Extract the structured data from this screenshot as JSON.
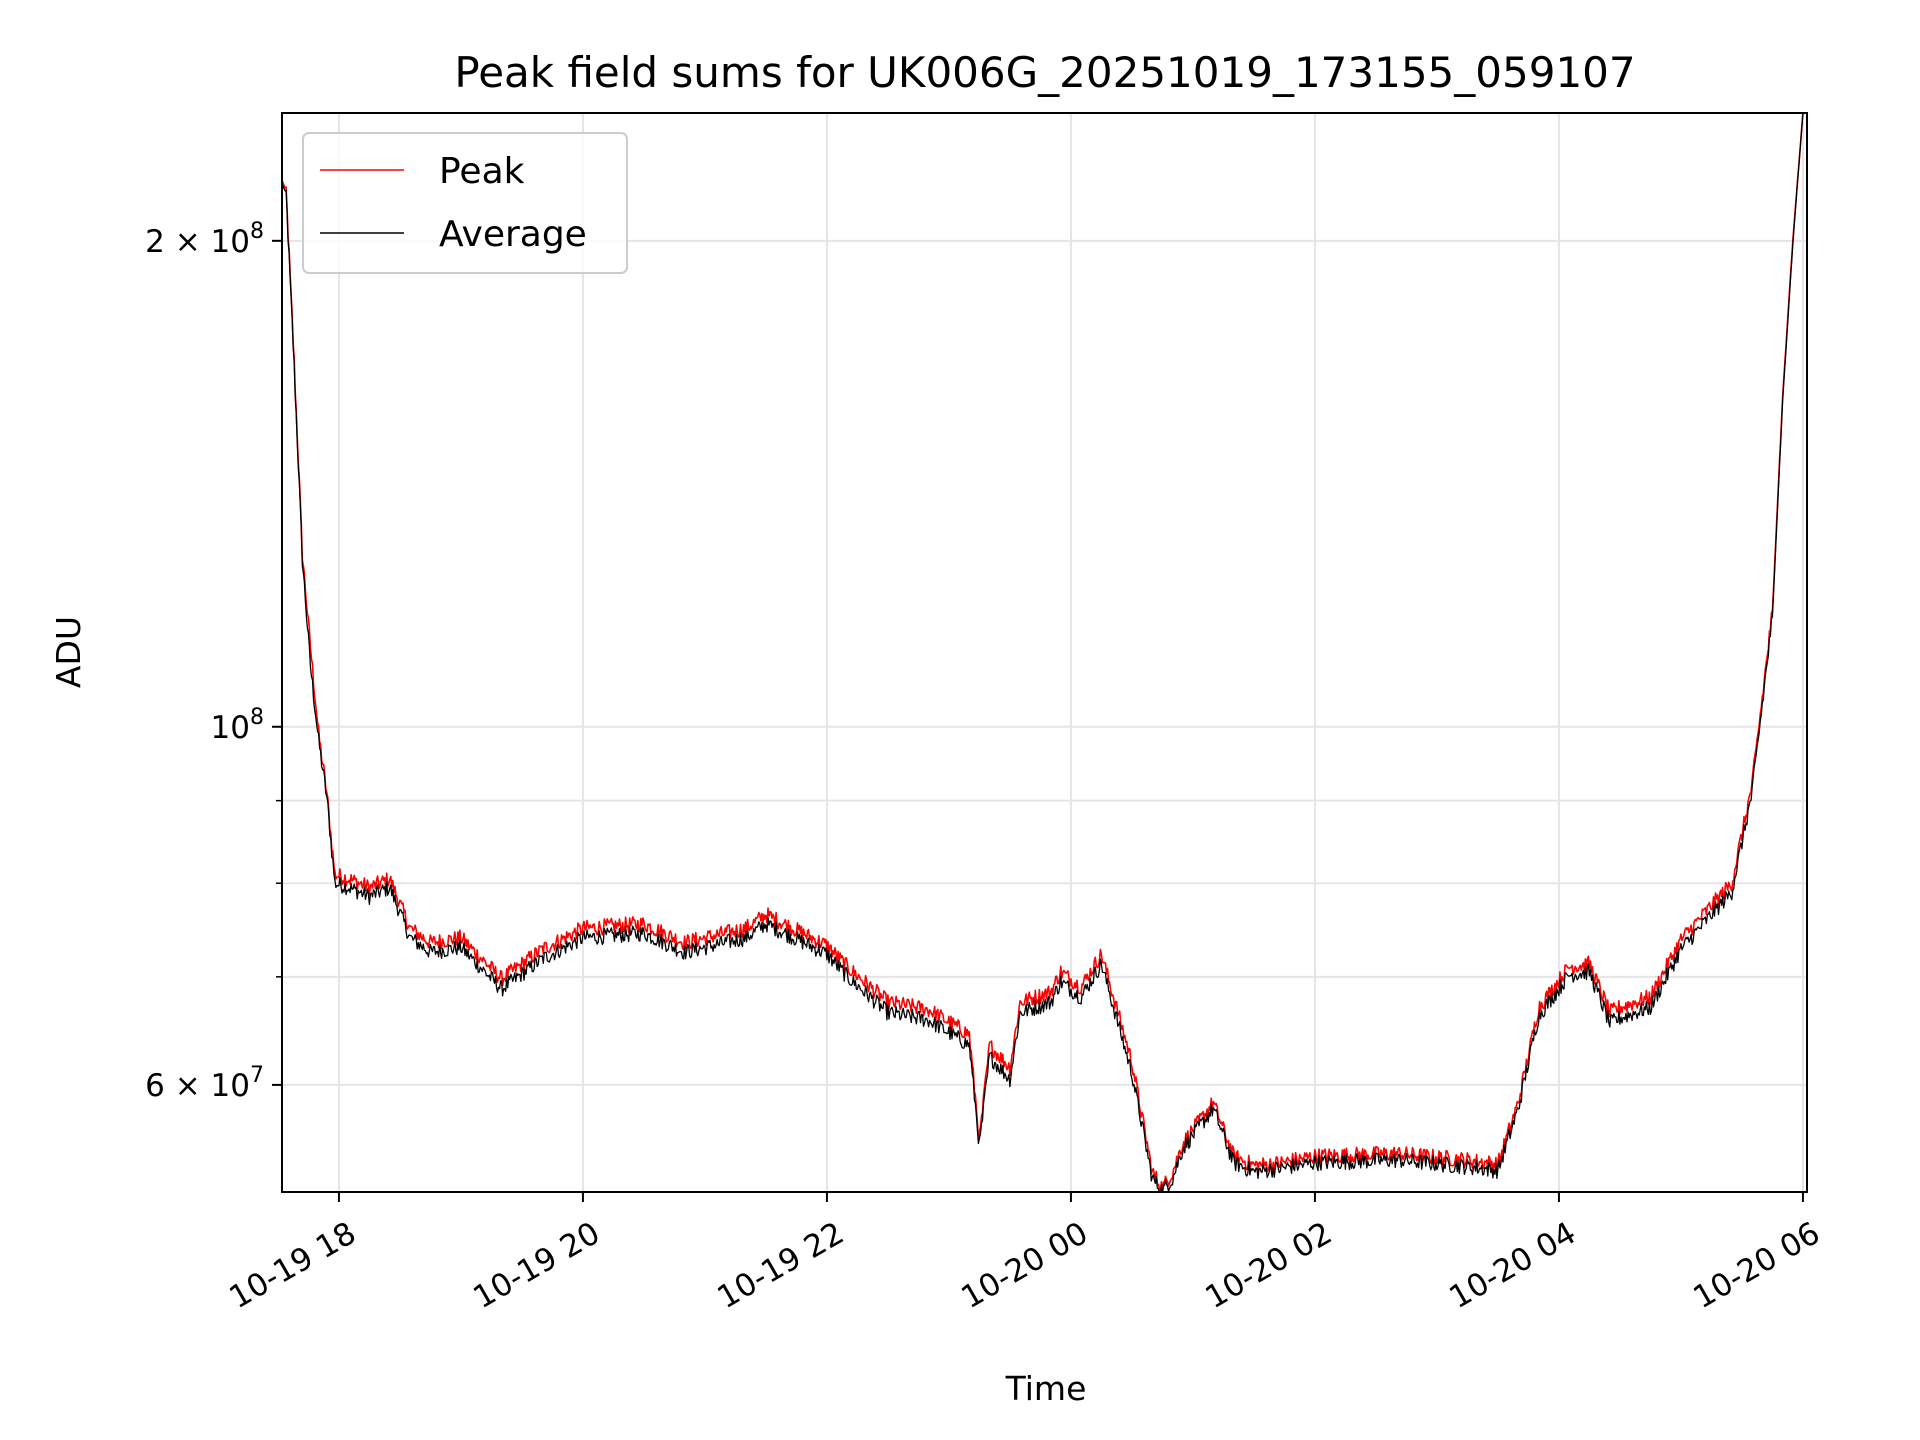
{
  "chart_data": {
    "type": "line",
    "title": "Peak field sums for UK006G_20251019_173155_059107",
    "xlabel": "Time",
    "ylabel": "ADU",
    "x_axis": {
      "type": "time",
      "range": [
        "2025-10-19 17:32",
        "2025-10-20 06:02"
      ],
      "ticks": [
        {
          "value": "2025-10-19 18:00",
          "label": "10-19 18"
        },
        {
          "value": "2025-10-19 20:00",
          "label": "10-19 20"
        },
        {
          "value": "2025-10-19 22:00",
          "label": "10-19 22"
        },
        {
          "value": "2025-10-20 00:00",
          "label": "10-20 00"
        },
        {
          "value": "2025-10-20 02:00",
          "label": "10-20 02"
        },
        {
          "value": "2025-10-20 04:00",
          "label": "10-20 04"
        },
        {
          "value": "2025-10-20 06:00",
          "label": "10-20 06"
        }
      ]
    },
    "y_axis": {
      "scale": "log",
      "range": [
        51500000,
        240000000
      ],
      "ticks": [
        {
          "value": 60000000,
          "label_base": "6 × 10",
          "label_exp": "7"
        },
        {
          "value": 100000000,
          "label_base": "10",
          "label_exp": "8"
        },
        {
          "value": 200000000,
          "label_base": "2 × 10",
          "label_exp": "8"
        }
      ],
      "minor_ticks": [
        70000000,
        80000000,
        90000000
      ]
    },
    "grid": true,
    "legend": {
      "placement": "upper-left",
      "entries": [
        "Peak",
        "Average"
      ]
    },
    "series": [
      {
        "name": "Peak",
        "color": "#ff0000",
        "x": [
          "2025-10-19 17:32",
          "2025-10-19 17:34",
          "2025-10-19 17:38",
          "2025-10-19 17:42",
          "2025-10-19 17:46",
          "2025-10-19 17:50",
          "2025-10-19 17:54",
          "2025-10-19 17:58",
          "2025-10-19 18:05",
          "2025-10-19 18:15",
          "2025-10-19 18:25",
          "2025-10-19 18:35",
          "2025-10-19 18:45",
          "2025-10-19 19:00",
          "2025-10-19 19:20",
          "2025-10-19 19:40",
          "2025-10-19 20:00",
          "2025-10-19 20:30",
          "2025-10-19 20:50",
          "2025-10-19 21:20",
          "2025-10-19 21:30",
          "2025-10-19 22:00",
          "2025-10-19 22:10",
          "2025-10-19 22:30",
          "2025-10-19 22:50",
          "2025-10-19 23:10",
          "2025-10-19 23:15",
          "2025-10-19 23:20",
          "2025-10-19 23:30",
          "2025-10-19 23:35",
          "2025-10-19 23:50",
          "2025-10-19 23:55",
          "2025-10-20 00:05",
          "2025-10-20 00:15",
          "2025-10-20 00:30",
          "2025-10-20 00:40",
          "2025-10-20 00:45",
          "2025-10-20 00:50",
          "2025-10-20 00:55",
          "2025-10-20 01:10",
          "2025-10-20 01:20",
          "2025-10-20 01:30",
          "2025-10-20 01:40",
          "2025-10-20 02:00",
          "2025-10-20 02:40",
          "2025-10-20 03:15",
          "2025-10-20 03:30",
          "2025-10-20 03:40",
          "2025-10-20 03:50",
          "2025-10-20 04:05",
          "2025-10-20 04:15",
          "2025-10-20 04:25",
          "2025-10-20 04:30",
          "2025-10-20 04:45",
          "2025-10-20 05:00",
          "2025-10-20 05:15",
          "2025-10-20 05:25",
          "2025-10-20 05:35",
          "2025-10-20 05:45",
          "2025-10-20 05:50",
          "2025-10-20 05:55",
          "2025-10-20 06:00"
        ],
        "values": [
          218000000,
          215000000,
          168000000,
          128000000,
          112000000,
          99000000,
          91000000,
          81000000,
          80500000,
          79500000,
          80500000,
          75000000,
          73500000,
          74000000,
          69800000,
          72800000,
          75000000,
          75500000,
          73500000,
          75000000,
          76500000,
          73200000,
          71000000,
          67500000,
          66800000,
          64500000,
          55500000,
          63500000,
          61500000,
          67500000,
          68500000,
          70500000,
          69000000,
          72300000,
          62000000,
          53000000,
          51800000,
          53000000,
          55200000,
          58500000,
          54200000,
          53500000,
          53600000,
          54200000,
          54400000,
          53900000,
          53600000,
          58500000,
          67000000,
          71000000,
          71300000,
          66500000,
          67000000,
          68000000,
          73800000,
          77500000,
          80000000,
          92000000,
          118000000,
          160000000,
          200000000,
          240000000
        ]
      },
      {
        "name": "Average",
        "color": "#000000",
        "x": [
          "2025-10-19 17:32",
          "2025-10-19 17:34",
          "2025-10-19 17:38",
          "2025-10-19 17:42",
          "2025-10-19 17:46",
          "2025-10-19 17:50",
          "2025-10-19 17:54",
          "2025-10-19 17:58",
          "2025-10-19 18:05",
          "2025-10-19 18:15",
          "2025-10-19 18:25",
          "2025-10-19 18:35",
          "2025-10-19 18:45",
          "2025-10-19 19:00",
          "2025-10-19 19:20",
          "2025-10-19 19:40",
          "2025-10-19 20:00",
          "2025-10-19 20:30",
          "2025-10-19 20:50",
          "2025-10-19 21:20",
          "2025-10-19 21:30",
          "2025-10-19 22:00",
          "2025-10-19 22:10",
          "2025-10-19 22:30",
          "2025-10-19 22:50",
          "2025-10-19 23:10",
          "2025-10-19 23:15",
          "2025-10-19 23:20",
          "2025-10-19 23:30",
          "2025-10-19 23:35",
          "2025-10-19 23:50",
          "2025-10-19 23:55",
          "2025-10-20 00:05",
          "2025-10-20 00:15",
          "2025-10-20 00:30",
          "2025-10-20 00:40",
          "2025-10-20 00:45",
          "2025-10-20 00:50",
          "2025-10-20 00:55",
          "2025-10-20 01:10",
          "2025-10-20 01:20",
          "2025-10-20 01:30",
          "2025-10-20 01:40",
          "2025-10-20 02:00",
          "2025-10-20 02:40",
          "2025-10-20 03:15",
          "2025-10-20 03:30",
          "2025-10-20 03:40",
          "2025-10-20 03:50",
          "2025-10-20 04:05",
          "2025-10-20 04:15",
          "2025-10-20 04:25",
          "2025-10-20 04:30",
          "2025-10-20 04:45",
          "2025-10-20 05:00",
          "2025-10-20 05:15",
          "2025-10-20 05:25",
          "2025-10-20 05:35",
          "2025-10-20 05:45",
          "2025-10-20 05:50",
          "2025-10-20 05:55",
          "2025-10-20 06:00"
        ],
        "values": [
          217000000,
          214000000,
          167000000,
          127000000,
          109000000,
          98000000,
          90500000,
          80000000,
          79500000,
          78500000,
          79500000,
          74000000,
          72500000,
          73000000,
          68800000,
          71800000,
          74000000,
          74500000,
          72500000,
          74000000,
          75500000,
          72300000,
          70000000,
          66500000,
          65800000,
          63500000,
          55000000,
          62500000,
          60500000,
          66500000,
          67500000,
          69500000,
          68000000,
          71300000,
          61000000,
          52500000,
          51600000,
          52500000,
          54800000,
          58000000,
          53700000,
          53000000,
          53200000,
          53700000,
          53900000,
          53400000,
          53100000,
          58000000,
          66200000,
          70200000,
          70500000,
          65500000,
          66000000,
          67000000,
          72800000,
          76500000,
          79000000,
          91000000,
          117000000,
          159000000,
          199000000,
          240000000
        ]
      }
    ]
  }
}
